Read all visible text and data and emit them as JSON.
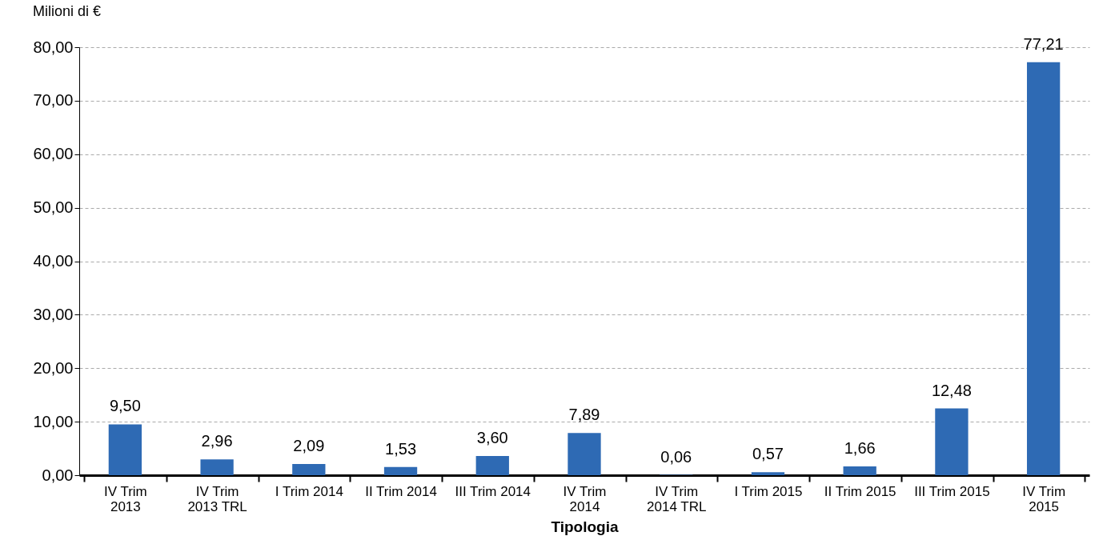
{
  "chart_data": {
    "type": "bar",
    "ylabel": "Milioni di €",
    "xlabel": "Tipologia",
    "categories": [
      "IV Trim\n2013",
      "IV Trim\n2013 TRL",
      "I Trim 2014",
      "II Trim 2014",
      "III Trim 2014",
      "IV Trim\n2014",
      "IV Trim\n2014 TRL",
      "I Trim 2015",
      "II Trim 2015",
      "III Trim 2015",
      "IV Trim\n2015"
    ],
    "values": [
      9.5,
      2.96,
      2.09,
      1.53,
      3.6,
      7.89,
      0.06,
      0.57,
      1.66,
      12.48,
      77.21
    ],
    "value_labels": [
      "9,50",
      "2,96",
      "2,09",
      "1,53",
      "3,60",
      "7,89",
      "0,06",
      "0,57",
      "1,66",
      "12,48",
      "77,21"
    ],
    "color": "#2e6ab4",
    "ylim": [
      0,
      80
    ],
    "yticks": [
      {
        "value": 0,
        "label": "0,00"
      },
      {
        "value": 10,
        "label": "10,00"
      },
      {
        "value": 20,
        "label": "20,00"
      },
      {
        "value": 30,
        "label": "30,00"
      },
      {
        "value": 40,
        "label": "40,00"
      },
      {
        "value": 50,
        "label": "50,00"
      },
      {
        "value": 60,
        "label": "60,00"
      },
      {
        "value": 70,
        "label": "70,00"
      },
      {
        "value": 80,
        "label": "80,00"
      }
    ],
    "grid": "y"
  }
}
